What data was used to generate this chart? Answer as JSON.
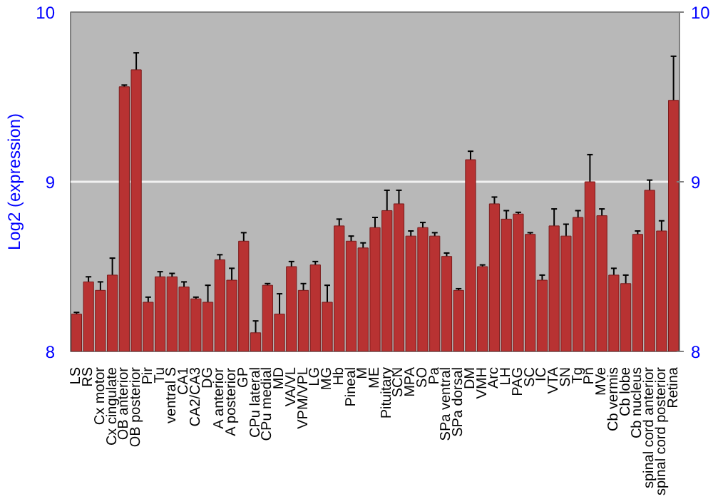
{
  "chart_data": {
    "type": "bar",
    "ylabel": "Log2 (expression)",
    "categories": [
      "LS",
      "RS",
      "Cx motor",
      "Cx cingulate",
      "OB anterior",
      "OB posterior",
      "Pir",
      "Tu",
      "ventral S",
      "CA1",
      "CA2/CA3",
      "DG",
      "A anterior",
      "A posterior",
      "GP",
      "CPu lateral",
      "CPu medial",
      "MD",
      "VA/VL",
      "VPM/VPL",
      "LG",
      "MG",
      "Hb",
      "Pineal",
      "M",
      "ME",
      "Pituitary",
      "SCN",
      "MPA",
      "SO",
      "Pa",
      "SPa ventral",
      "SPa dorsal",
      "DM",
      "VMH",
      "Arc",
      "LH",
      "PAG",
      "SC",
      "IC",
      "VTA",
      "SN",
      "Tg",
      "Pn",
      "MVe",
      "Cb vermis",
      "Cb lobe",
      "Cb nucleus",
      "spinal cord anterior",
      "spinal cord posterior",
      "Retina"
    ],
    "values": [
      8.22,
      8.41,
      8.36,
      8.45,
      9.56,
      9.66,
      8.29,
      8.44,
      8.44,
      8.38,
      8.31,
      8.29,
      8.54,
      8.42,
      8.65,
      8.11,
      8.39,
      8.22,
      8.5,
      8.36,
      8.51,
      8.29,
      8.74,
      8.65,
      8.61,
      8.73,
      8.83,
      8.87,
      8.68,
      8.73,
      8.68,
      8.56,
      8.36,
      9.13,
      8.5,
      8.87,
      8.78,
      8.81,
      8.69,
      8.42,
      8.74,
      8.68,
      8.79,
      9.0,
      8.8,
      8.45,
      8.4,
      8.69,
      8.95,
      8.71,
      9.48
    ],
    "errors": [
      0.01,
      0.03,
      0.05,
      0.1,
      0.01,
      0.1,
      0.03,
      0.03,
      0.02,
      0.03,
      0.01,
      0.1,
      0.03,
      0.07,
      0.05,
      0.07,
      0.01,
      0.12,
      0.03,
      0.04,
      0.02,
      0.1,
      0.04,
      0.03,
      0.03,
      0.06,
      0.12,
      0.08,
      0.03,
      0.03,
      0.02,
      0.02,
      0.01,
      0.05,
      0.01,
      0.04,
      0.05,
      0.01,
      0.01,
      0.03,
      0.1,
      0.07,
      0.04,
      0.16,
      0.04,
      0.04,
      0.05,
      0.02,
      0.06,
      0.06,
      0.26
    ],
    "color": "#b83232",
    "ylim": [
      8,
      10
    ],
    "yticks": [
      8,
      9,
      10
    ],
    "y2lim": [
      8,
      10
    ],
    "y2ticks": [
      8,
      9,
      10
    ],
    "grid": "y"
  }
}
